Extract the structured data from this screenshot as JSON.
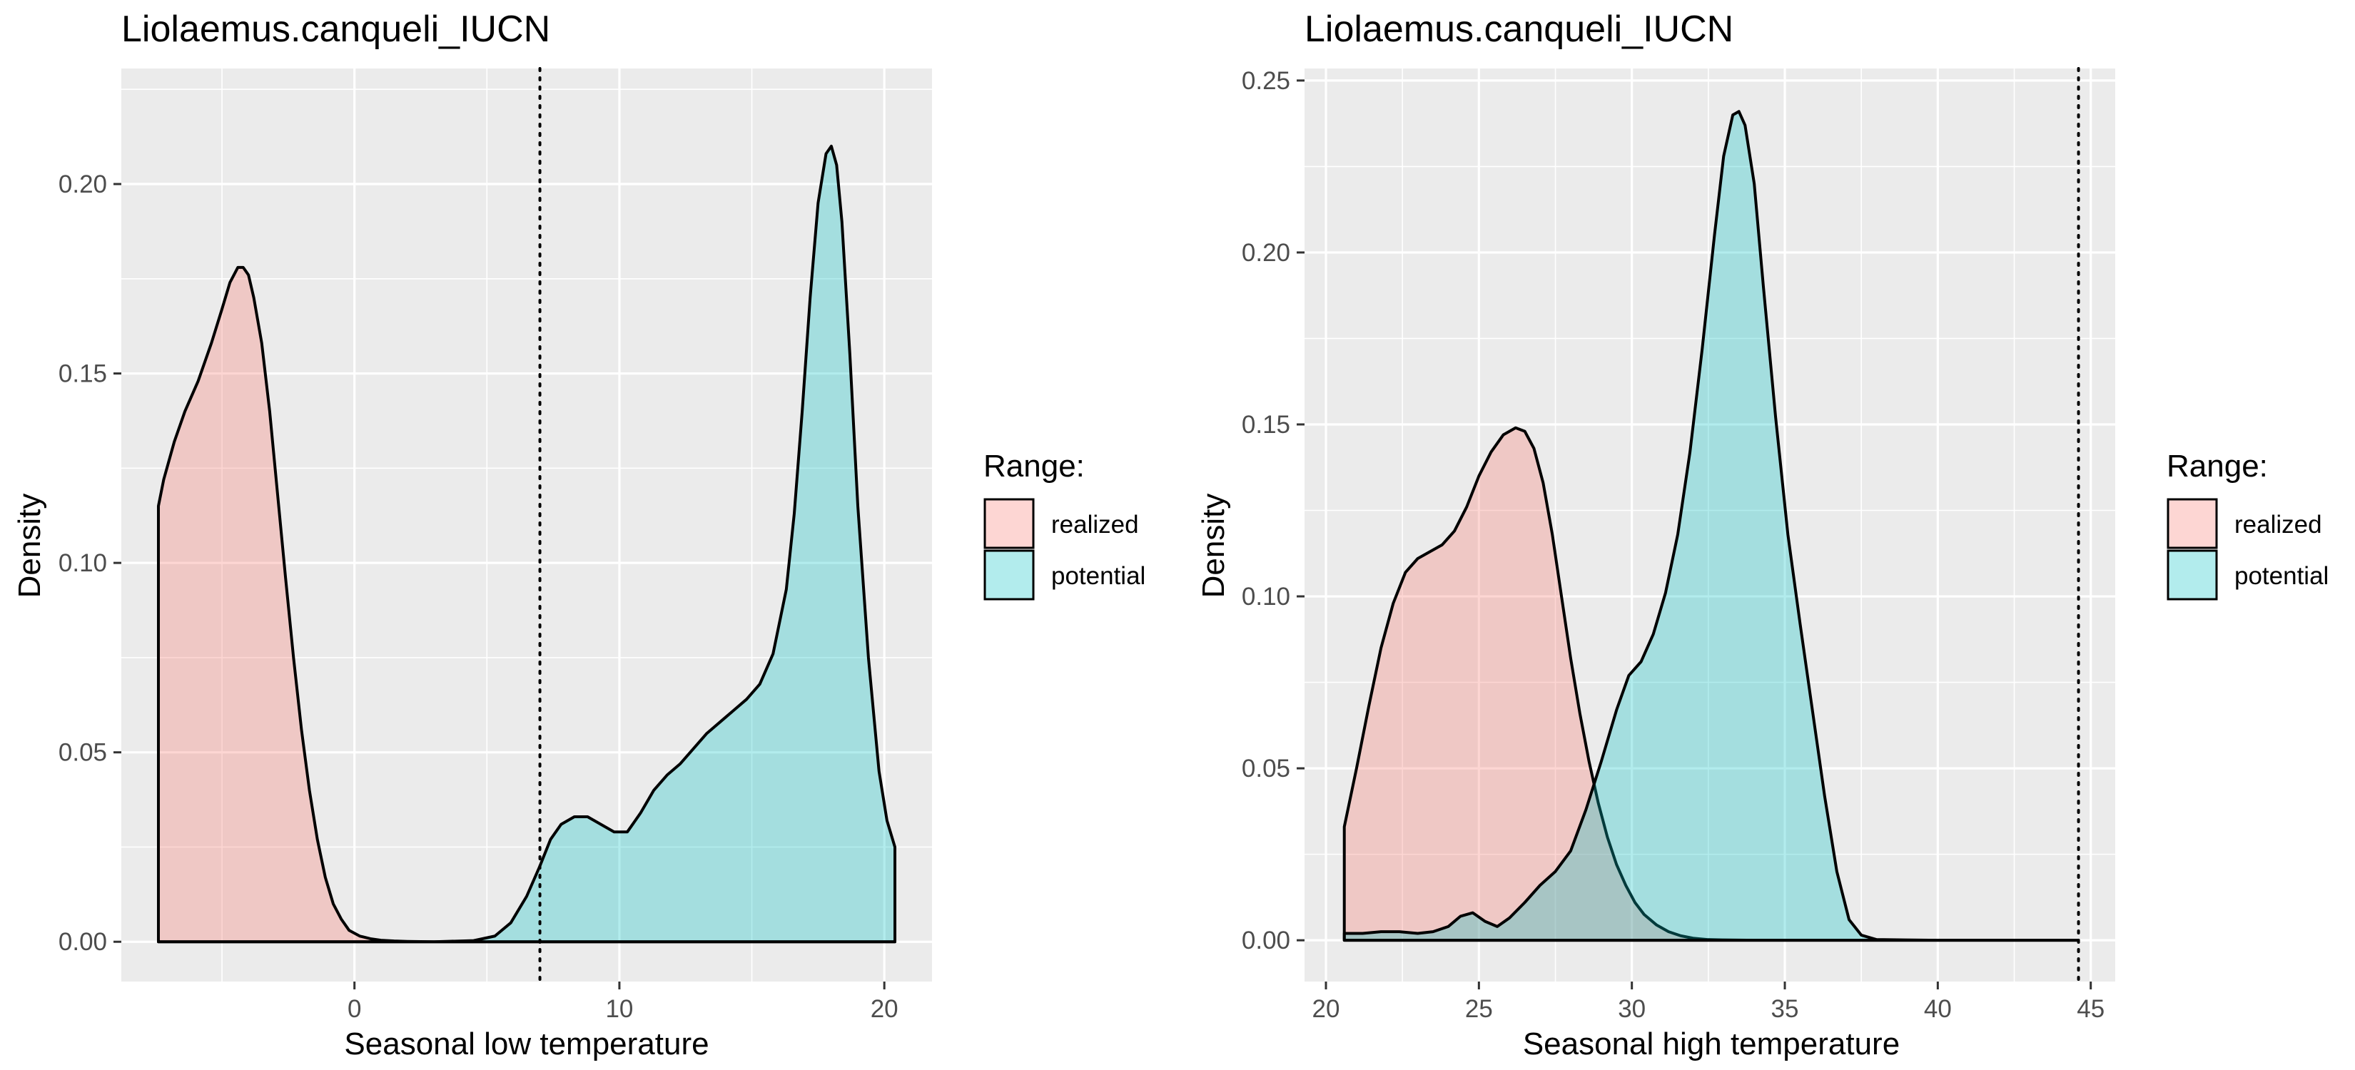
{
  "chart_data": [
    {
      "type": "area",
      "subtype": "density",
      "title": "Liolaemus.canqueli_IUCN",
      "xlabel": "Seasonal low temperature",
      "ylabel": "Density",
      "xlim": [
        -8.8,
        21.8
      ],
      "ylim": [
        -0.0105,
        0.2305
      ],
      "xticks": [
        0,
        10,
        20
      ],
      "yticks": [
        0.0,
        0.05,
        0.1,
        0.15,
        0.2
      ],
      "ytick_labels": [
        "0.00",
        "0.05",
        "0.10",
        "0.15",
        "0.20"
      ],
      "grid": true,
      "reference_line": {
        "x": 7,
        "style": "dotted"
      },
      "legend": {
        "title": "Range:",
        "position": "right"
      },
      "series": [
        {
          "name": "realized",
          "color": "#F8766D",
          "x": [
            -7.4,
            -7.2,
            -6.8,
            -6.4,
            -5.9,
            -5.4,
            -5.0,
            -4.7,
            -4.4,
            -4.2,
            -4.0,
            -3.8,
            -3.5,
            -3.2,
            -2.9,
            -2.6,
            -2.3,
            -2.0,
            -1.7,
            -1.4,
            -1.1,
            -0.8,
            -0.5,
            -0.2,
            0.2,
            0.6,
            1.0,
            1.5,
            2,
            3,
            4,
            5,
            7,
            10,
            15,
            20.4
          ],
          "y": [
            0.115,
            0.122,
            0.132,
            0.14,
            0.148,
            0.158,
            0.167,
            0.174,
            0.178,
            0.178,
            0.176,
            0.17,
            0.158,
            0.14,
            0.118,
            0.096,
            0.075,
            0.056,
            0.04,
            0.027,
            0.017,
            0.01,
            0.006,
            0.003,
            0.0015,
            0.0008,
            0.0004,
            0.0002,
            0.0001,
            0,
            0,
            0,
            0,
            0,
            0,
            0
          ]
        },
        {
          "name": "potential",
          "color": "#00BFC4",
          "x": [
            -7.4,
            0,
            3,
            4.5,
            5.3,
            5.9,
            6.5,
            7.0,
            7.4,
            7.8,
            8.3,
            8.8,
            9.3,
            9.8,
            10.3,
            10.8,
            11.3,
            11.8,
            12.3,
            12.8,
            13.3,
            13.8,
            14.3,
            14.8,
            15.3,
            15.8,
            16.3,
            16.6,
            16.9,
            17.2,
            17.5,
            17.8,
            18.0,
            18.2,
            18.4,
            18.7,
            19.0,
            19.4,
            19.8,
            20.1,
            20.4
          ],
          "y": [
            0,
            0,
            0,
            0.0003,
            0.0015,
            0.005,
            0.012,
            0.02,
            0.027,
            0.031,
            0.033,
            0.033,
            0.031,
            0.029,
            0.029,
            0.034,
            0.04,
            0.044,
            0.047,
            0.051,
            0.055,
            0.058,
            0.061,
            0.064,
            0.068,
            0.076,
            0.093,
            0.113,
            0.14,
            0.17,
            0.195,
            0.208,
            0.21,
            0.205,
            0.19,
            0.155,
            0.115,
            0.075,
            0.045,
            0.032,
            0.025
          ]
        }
      ]
    },
    {
      "type": "area",
      "subtype": "density",
      "title": "Liolaemus.canqueli_IUCN",
      "xlabel": "Seasonal high temperature",
      "ylabel": "Density",
      "xlim": [
        19.3,
        45.8
      ],
      "ylim": [
        -0.012,
        0.2535
      ],
      "xticks": [
        20,
        25,
        30,
        35,
        40,
        45
      ],
      "yticks": [
        0.0,
        0.05,
        0.1,
        0.15,
        0.2,
        0.25
      ],
      "ytick_labels": [
        "0.00",
        "0.05",
        "0.10",
        "0.15",
        "0.20",
        "0.25"
      ],
      "grid": true,
      "reference_line": {
        "x": 44.6,
        "style": "dotted"
      },
      "legend": {
        "title": "Range:",
        "position": "right"
      },
      "series": [
        {
          "name": "realized",
          "color": "#F8766D",
          "x": [
            20.6,
            21.0,
            21.4,
            21.8,
            22.2,
            22.6,
            23.0,
            23.4,
            23.8,
            24.2,
            24.6,
            25.0,
            25.4,
            25.8,
            26.2,
            26.5,
            26.8,
            27.1,
            27.4,
            27.7,
            28.0,
            28.3,
            28.6,
            28.9,
            29.2,
            29.5,
            29.8,
            30.1,
            30.4,
            30.8,
            31.2,
            31.6,
            32.0,
            32.5,
            33.0,
            34,
            36,
            40,
            44.6
          ],
          "y": [
            0.033,
            0.05,
            0.068,
            0.085,
            0.098,
            0.107,
            0.111,
            0.113,
            0.115,
            0.119,
            0.126,
            0.135,
            0.142,
            0.147,
            0.149,
            0.148,
            0.143,
            0.133,
            0.118,
            0.1,
            0.082,
            0.066,
            0.052,
            0.04,
            0.03,
            0.022,
            0.016,
            0.011,
            0.0075,
            0.0045,
            0.0025,
            0.0013,
            0.0006,
            0.0002,
            0.0001,
            0,
            0,
            0,
            0
          ]
        },
        {
          "name": "potential",
          "color": "#00BFC4",
          "x": [
            20.6,
            21.2,
            21.8,
            22.4,
            23.0,
            23.5,
            24.0,
            24.4,
            24.8,
            25.2,
            25.6,
            26.0,
            26.5,
            27.0,
            27.5,
            28.0,
            28.5,
            29.0,
            29.5,
            29.9,
            30.3,
            30.7,
            31.1,
            31.5,
            31.9,
            32.3,
            32.7,
            33.0,
            33.3,
            33.5,
            33.7,
            34.0,
            34.3,
            34.7,
            35.1,
            35.5,
            35.9,
            36.3,
            36.7,
            37.1,
            37.5,
            38,
            40,
            44.6
          ],
          "y": [
            0.002,
            0.002,
            0.0025,
            0.0025,
            0.002,
            0.0025,
            0.004,
            0.007,
            0.008,
            0.0055,
            0.004,
            0.0065,
            0.011,
            0.016,
            0.02,
            0.026,
            0.038,
            0.052,
            0.067,
            0.077,
            0.081,
            0.089,
            0.101,
            0.118,
            0.142,
            0.172,
            0.205,
            0.228,
            0.24,
            0.241,
            0.237,
            0.22,
            0.19,
            0.152,
            0.118,
            0.092,
            0.067,
            0.042,
            0.02,
            0.006,
            0.0015,
            0.0002,
            0,
            0
          ]
        }
      ]
    }
  ]
}
